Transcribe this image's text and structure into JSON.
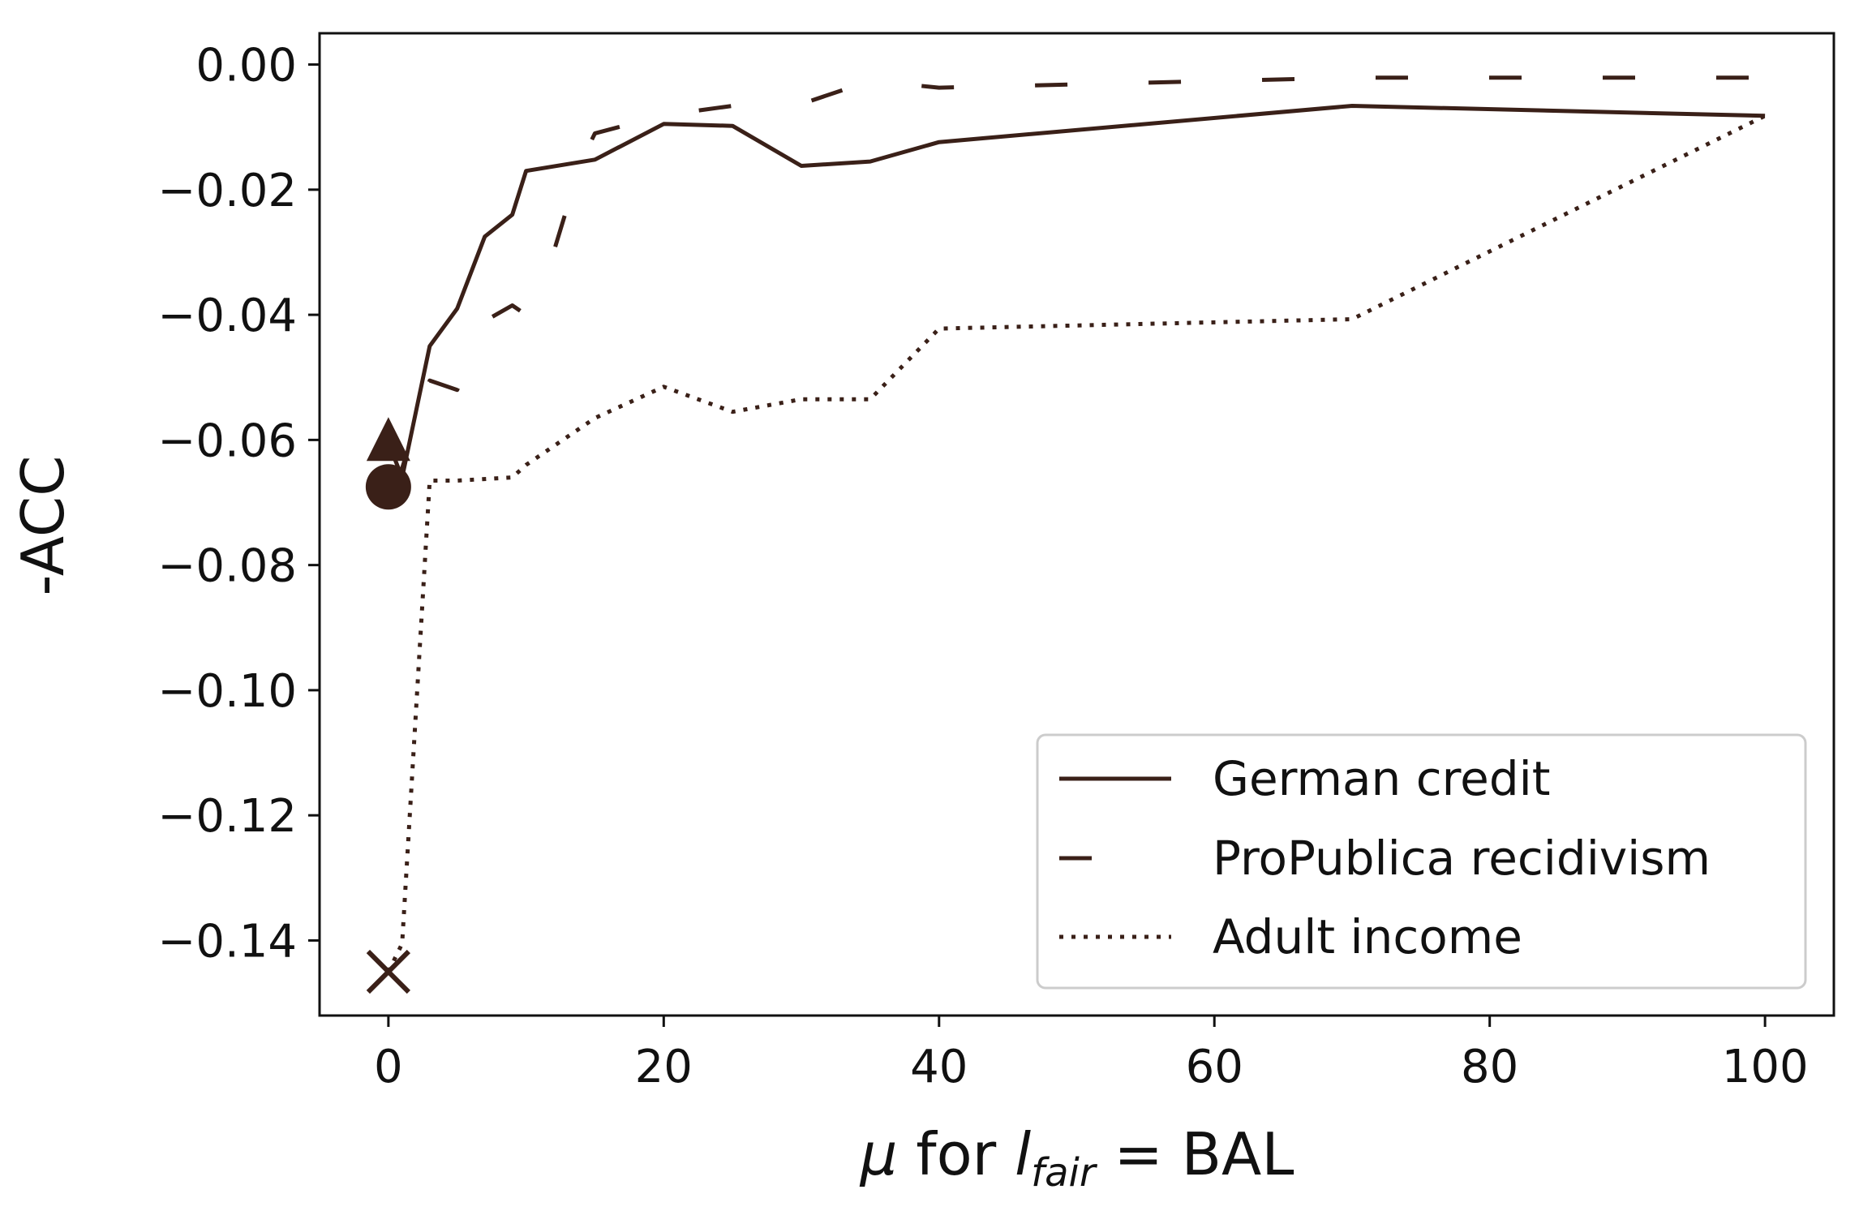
{
  "chart_data": {
    "type": "line",
    "xlabel": {
      "prefix": "μ",
      "middle": " for ",
      "var": "l",
      "sub": "fair",
      "suffix": " = BAL"
    },
    "ylabel": "-ACC",
    "xlim": [
      -5,
      105
    ],
    "ylim": [
      -0.152,
      0.005
    ],
    "x_ticks": [
      0,
      20,
      40,
      60,
      80,
      100
    ],
    "x_tick_labels": [
      "0",
      "20",
      "40",
      "60",
      "80",
      "100"
    ],
    "y_ticks": [
      0.0,
      -0.02,
      -0.04,
      -0.06,
      -0.08,
      -0.1,
      -0.12,
      -0.14
    ],
    "y_tick_labels": [
      "0.00",
      "−0.02",
      "−0.04",
      "−0.06",
      "−0.08",
      "−0.10",
      "−0.12",
      "−0.14"
    ],
    "grid": false,
    "legend_position": "lower-right",
    "line_color": "#3a2018",
    "series": [
      {
        "name": "German credit",
        "style": "solid",
        "marker": "triangle",
        "marker_at": [
          0,
          -0.0605
        ],
        "x": [
          0,
          1,
          3,
          5,
          7,
          9,
          10,
          15,
          20,
          25,
          30,
          35,
          40,
          70,
          100
        ],
        "y": [
          -0.0605,
          -0.066,
          -0.045,
          -0.039,
          -0.0275,
          -0.024,
          -0.017,
          -0.0152,
          -0.0095,
          -0.0098,
          -0.0162,
          -0.0155,
          -0.0124,
          -0.0066,
          -0.0082
        ]
      },
      {
        "name": "ProPublica recidivism",
        "style": "dashed",
        "marker": "circle",
        "marker_at": [
          0,
          -0.0675
        ],
        "x": [
          0,
          1,
          3,
          5,
          7,
          9,
          10,
          12,
          14,
          15,
          20,
          25,
          30,
          35,
          40,
          70,
          100
        ],
        "y": [
          -0.0675,
          -0.0645,
          -0.0505,
          -0.052,
          -0.041,
          -0.0385,
          -0.04,
          -0.03,
          -0.0155,
          -0.011,
          -0.0081,
          -0.0066,
          -0.0063,
          -0.0026,
          -0.0037,
          -0.0021,
          -0.0021
        ]
      },
      {
        "name": "Adult income",
        "style": "dotted",
        "marker": "x",
        "marker_at": [
          0,
          -0.145
        ],
        "x": [
          0,
          1,
          3,
          5,
          9,
          10,
          15,
          20,
          25,
          30,
          35,
          40,
          70,
          100
        ],
        "y": [
          -0.145,
          -0.1405,
          -0.0665,
          -0.0665,
          -0.066,
          -0.064,
          -0.0565,
          -0.0515,
          -0.0555,
          -0.0535,
          -0.0535,
          -0.0422,
          -0.0407,
          -0.0082
        ]
      }
    ]
  }
}
